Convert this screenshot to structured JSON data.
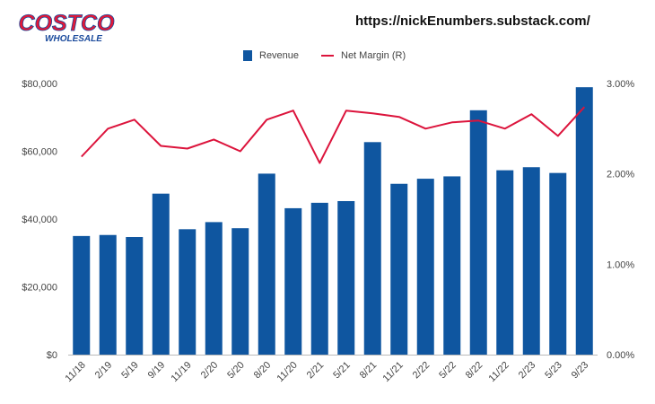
{
  "header": {
    "logo_top": "COSTCO",
    "logo_bottom": "WHOLESALE",
    "source_url": "https://nickEnumbers.substack.com/"
  },
  "colors": {
    "bar": "#0f56a0",
    "line": "#dc143c",
    "logo_red": "#e31837",
    "logo_blue": "#1a4a9c"
  },
  "chart_data": {
    "type": "bar",
    "categories": [
      "11/18",
      "2/19",
      "5/19",
      "9/19",
      "11/19",
      "2/20",
      "5/20",
      "8/20",
      "11/20",
      "2/21",
      "5/21",
      "8/21",
      "11/21",
      "2/22",
      "5/22",
      "8/22",
      "11/22",
      "2/23",
      "5/23",
      "9/23"
    ],
    "series": [
      {
        "name": "Revenue",
        "axis": "left",
        "type": "bar",
        "values": [
          35000,
          35300,
          34700,
          47500,
          37000,
          39100,
          37300,
          53400,
          43200,
          44800,
          45300,
          62700,
          50400,
          51900,
          52600,
          72100,
          54400,
          55300,
          53600,
          78900
        ]
      },
      {
        "name": "Net Margin (R)",
        "axis": "right",
        "type": "line",
        "values": [
          2.19,
          2.5,
          2.6,
          2.31,
          2.28,
          2.38,
          2.25,
          2.6,
          2.7,
          2.12,
          2.7,
          2.67,
          2.63,
          2.5,
          2.57,
          2.59,
          2.5,
          2.66,
          2.42,
          2.74
        ]
      }
    ],
    "y_left": {
      "range": [
        0,
        80000
      ],
      "ticks": [
        "$0",
        "$20,000",
        "$40,000",
        "$60,000",
        "$80,000"
      ]
    },
    "y_right": {
      "range": [
        0,
        3
      ],
      "ticks": [
        "0.00%",
        "1.00%",
        "2.00%",
        "3.00%"
      ]
    },
    "legend_position": "top-center",
    "grid": false
  }
}
